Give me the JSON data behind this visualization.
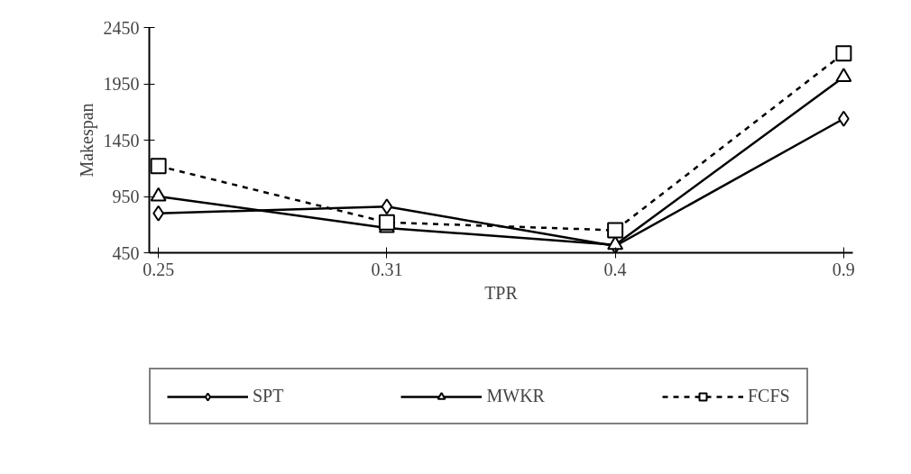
{
  "chart_data": {
    "type": "line",
    "xlabel": "TPR",
    "ylabel": "Makespan",
    "categories": [
      "0.25",
      "0.31",
      "0.4",
      "0.9"
    ],
    "ylim": [
      450,
      2450
    ],
    "yticks": [
      450,
      950,
      1450,
      1950,
      2450
    ],
    "grid": false,
    "legend": "bottom",
    "series": [
      {
        "name": "SPT",
        "color": "#000000",
        "marker": "diamond",
        "line_style": "solid",
        "values": [
          800,
          860,
          510,
          1640
        ]
      },
      {
        "name": "MWKR",
        "color": "#000000",
        "marker": "triangle",
        "line_style": "solid",
        "values": [
          950,
          670,
          520,
          2010
        ]
      },
      {
        "name": "FCFS",
        "color": "#000000",
        "marker": "square",
        "line_style": "dashed",
        "values": [
          1220,
          720,
          650,
          2220
        ]
      }
    ]
  }
}
